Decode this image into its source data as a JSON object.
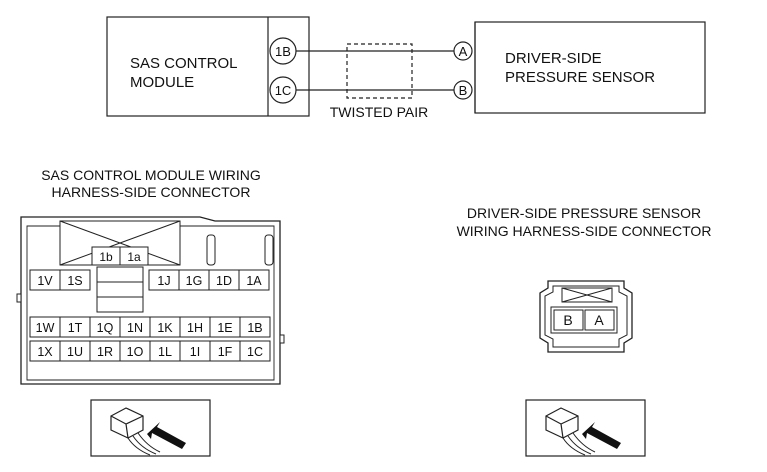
{
  "wiring": {
    "module_label": [
      "SAS CONTROL",
      "MODULE"
    ],
    "sensor_label": [
      "DRIVER-SIDE",
      "PRESSURE SENSOR"
    ],
    "module_terminals": [
      "1B",
      "1C"
    ],
    "sensor_terminals": [
      "A",
      "B"
    ],
    "twisted_pair_label": "TWISTED PAIR"
  },
  "sas_connector": {
    "title": [
      "SAS CONTROL MODULE WIRING",
      "HARNESS-SIDE CONNECTOR"
    ],
    "top_pins": [
      "1b",
      "1a"
    ],
    "row1": [
      "1V",
      "1S",
      "1J",
      "1G",
      "1D",
      "1A"
    ],
    "row2": [
      "1W",
      "1T",
      "1Q",
      "1N",
      "1K",
      "1H",
      "1E",
      "1B"
    ],
    "row3": [
      "1X",
      "1U",
      "1R",
      "1O",
      "1L",
      "1I",
      "1F",
      "1C"
    ]
  },
  "sensor_connector": {
    "title": [
      "DRIVER-SIDE PRESSURE SENSOR",
      "WIRING HARNESS-SIDE CONNECTOR"
    ],
    "pins": [
      "B",
      "A"
    ]
  },
  "icons": {
    "left_view": "connector-view-arrow-icon",
    "right_view": "connector-view-arrow-icon"
  }
}
